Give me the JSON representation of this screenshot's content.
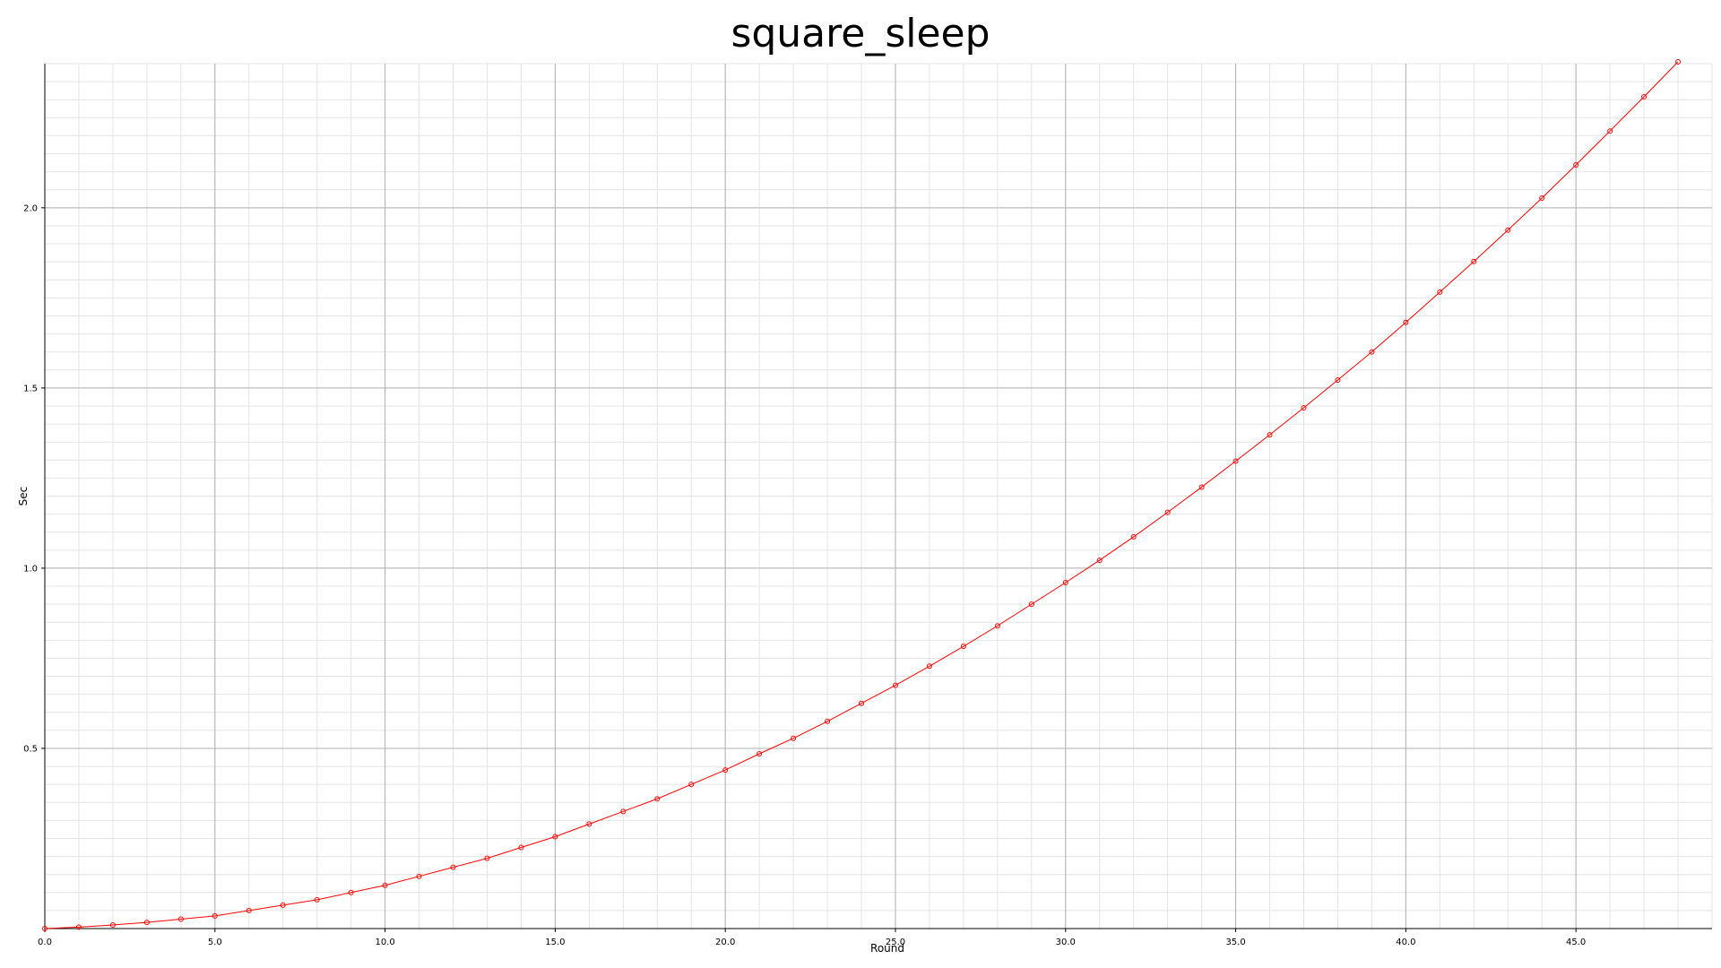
{
  "chart_data": {
    "type": "line",
    "title": "square_sleep",
    "xlabel": "Round",
    "ylabel": "Sec",
    "xlim": [
      0,
      49
    ],
    "ylim": [
      0,
      2.4
    ],
    "grid": true,
    "x_ticks": [
      0.0,
      5.0,
      10.0,
      15.0,
      20.0,
      25.0,
      30.0,
      35.0,
      40.0,
      45.0
    ],
    "x_tick_labels": [
      "0.0",
      "5.0",
      "10.0",
      "15.0",
      "20.0",
      "25.0",
      "30.0",
      "35.0",
      "40.0",
      "45.0"
    ],
    "y_ticks": [
      0.5,
      1.0,
      1.5,
      2.0
    ],
    "y_tick_labels": [
      "0.5",
      "1.0",
      "1.5",
      "2.0"
    ],
    "colors": {
      "series": "#ff0000",
      "major_grid": "#b0b0b0",
      "minor_grid": "#e4e4e4",
      "axis": "#000000"
    },
    "series": [
      {
        "marker": "circle",
        "x": [
          0,
          1,
          2,
          3,
          4,
          5,
          6,
          7,
          8,
          9,
          10,
          11,
          12,
          13,
          14,
          15,
          16,
          17,
          18,
          19,
          20,
          21,
          22,
          23,
          24,
          25,
          26,
          27,
          28,
          29,
          30,
          31,
          32,
          33,
          34,
          35,
          36,
          37,
          38,
          39,
          40,
          41,
          42,
          43,
          44,
          45,
          46,
          47,
          48
        ],
        "values": [
          0.0,
          0.004,
          0.01,
          0.017,
          0.026,
          0.035,
          0.05,
          0.065,
          0.08,
          0.1,
          0.12,
          0.145,
          0.17,
          0.195,
          0.225,
          0.255,
          0.29,
          0.325,
          0.36,
          0.4,
          0.44,
          0.485,
          0.528,
          0.575,
          0.625,
          0.675,
          0.728,
          0.783,
          0.84,
          0.9,
          0.96,
          1.022,
          1.087,
          1.155,
          1.225,
          1.297,
          1.37,
          1.445,
          1.522,
          1.6,
          1.682,
          1.766,
          1.851,
          1.938,
          2.027,
          2.119,
          2.213,
          2.308,
          2.405
        ]
      }
    ]
  }
}
